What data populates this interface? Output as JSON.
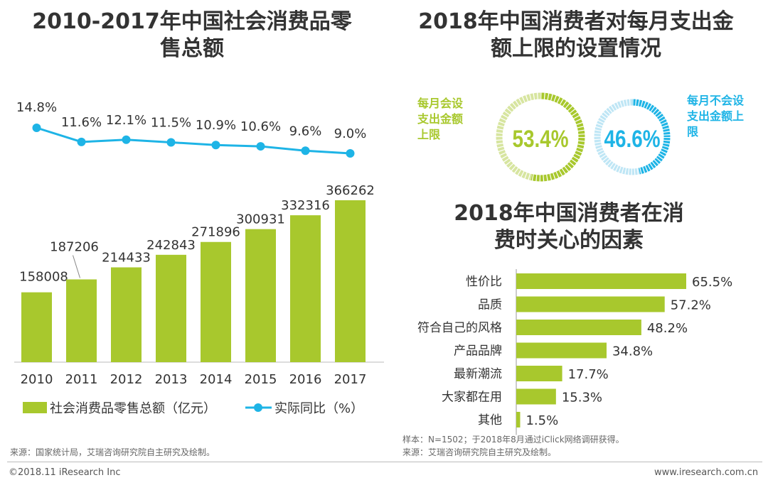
{
  "left": {
    "title_line1": "2010-2017年中国社会消费品零",
    "title_line2": "售总额",
    "legend_bar": "社会消费品零售总额（亿元）",
    "legend_line": "实际同比（%）",
    "source": "来源：国家统计局，艾瑞咨询研究院自主研究及绘制。"
  },
  "right": {
    "title_line1": "2018年中国消费者对每月支出金",
    "title_line2": "额上限的设置情况",
    "donut_yes_label": [
      "每月会设",
      "支出金额",
      "上限"
    ],
    "donut_no_label": [
      "每月不会设",
      "支出金额上",
      "限"
    ],
    "donut_yes_value": "53.4%",
    "donut_no_value": "46.6%",
    "sub_title_line1": "2018年中国消费者在消",
    "sub_title_line2": "费时关心的因素",
    "sample_note": "样本：N=1502；于2018年8月通过iClick网络调研获得。",
    "source": "来源：艾瑞咨询研究院自主研究及绘制。"
  },
  "footer": {
    "copyright": "©2018.11 iResearch Inc",
    "website": "www.iresearch.com.cn"
  },
  "colors": {
    "green": "#a8c82d",
    "green_light": "#d7e5a0",
    "blue": "#1eb4e6",
    "blue_light": "#bfe6f5"
  },
  "chart_data": [
    {
      "type": "bar",
      "title": "2010-2017年中国社会消费品零售总额",
      "categories": [
        "2010",
        "2011",
        "2012",
        "2013",
        "2014",
        "2015",
        "2016",
        "2017"
      ],
      "series": [
        {
          "name": "社会消费品零售总额（亿元）",
          "type": "bar",
          "values": [
            158008,
            187206,
            214433,
            242843,
            271896,
            300931,
            332316,
            366262
          ],
          "labels": [
            "158008",
            "187206",
            "214433",
            "242843",
            "271896",
            "300931",
            "332316",
            "366262"
          ]
        },
        {
          "name": "实际同比（%）",
          "type": "line",
          "values": [
            14.8,
            11.6,
            12.1,
            11.5,
            10.9,
            10.6,
            9.6,
            9.0
          ],
          "labels": [
            "14.8%",
            "11.6%",
            "12.1%",
            "11.5%",
            "10.9%",
            "10.6%",
            "9.6%",
            "9.0%"
          ]
        }
      ]
    },
    {
      "type": "pie",
      "title": "2018年中国消费者对每月支出金额上限的设置情况",
      "categories": [
        "每月会设支出金额上限",
        "每月不会设支出金额上限"
      ],
      "values": [
        53.4,
        46.6
      ]
    },
    {
      "type": "bar",
      "orientation": "horizontal",
      "title": "2018年中国消费者在消费时关心的因素",
      "categories": [
        "性价比",
        "品质",
        "符合自己的风格",
        "产品品牌",
        "最新潮流",
        "大家都在用",
        "其他"
      ],
      "values": [
        65.5,
        57.2,
        48.2,
        34.8,
        17.7,
        15.3,
        1.5
      ],
      "labels": [
        "65.5%",
        "57.2%",
        "48.2%",
        "34.8%",
        "17.7%",
        "15.3%",
        "1.5%"
      ],
      "xlim": [
        0,
        100
      ]
    }
  ]
}
